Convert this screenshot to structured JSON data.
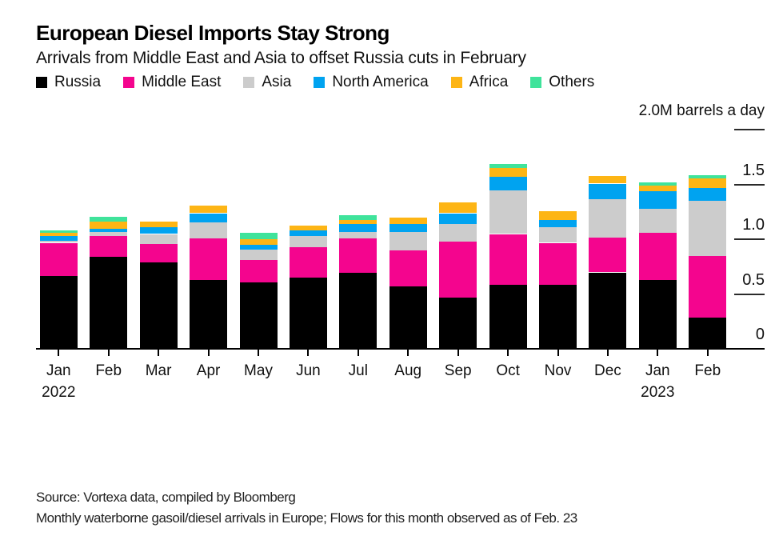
{
  "title": "European Diesel Imports Stay Strong",
  "subtitle": "Arrivals from Middle East and Asia to offset Russia cuts in February",
  "unit_label": "2.0M barrels a day",
  "source_line1": "Source: Vortexa data, compiled by Bloomberg",
  "source_line2": "Monthly waterborne gasoil/diesel arrivals in Europe; Flows for this month observed as of Feb. 23",
  "legend": [
    {
      "label": "Russia",
      "color": "#000000"
    },
    {
      "label": "Middle East",
      "color": "#f4058e"
    },
    {
      "label": "Asia",
      "color": "#cccccc"
    },
    {
      "label": "North America",
      "color": "#00a3f0"
    },
    {
      "label": "Africa",
      "color": "#fdb515"
    },
    {
      "label": "Others",
      "color": "#3fe39b"
    }
  ],
  "y_axis": {
    "labels": [
      {
        "text": "0",
        "value": 0
      },
      {
        "text": "0.5",
        "value": 0.5
      },
      {
        "text": "1.0",
        "value": 1.0
      },
      {
        "text": "1.5",
        "value": 1.5
      }
    ],
    "tick_line_values": [
      0.5,
      1.0,
      1.5,
      2.0
    ]
  },
  "chart_data": {
    "type": "bar",
    "stacked": true,
    "title": "European Diesel Imports Stay Strong",
    "subtitle": "Arrivals from Middle East and Asia to offset Russia cuts in February",
    "ylabel": "M barrels a day",
    "ylim": [
      0,
      2.0
    ],
    "yticks": [
      0,
      0.5,
      1.0,
      1.5,
      2.0
    ],
    "grid": false,
    "legend_position": "top",
    "categories": [
      "Jan",
      "Feb",
      "Mar",
      "Apr",
      "May",
      "Jun",
      "Jul",
      "Aug",
      "Sep",
      "Oct",
      "Nov",
      "Dec",
      "Jan",
      "Feb"
    ],
    "category_year_labels": {
      "0": "2022",
      "12": "2023"
    },
    "series": [
      {
        "name": "Russia",
        "color": "#000000",
        "values": [
          0.66,
          0.83,
          0.78,
          0.62,
          0.6,
          0.64,
          0.69,
          0.56,
          0.46,
          0.58,
          0.58,
          0.69,
          0.62,
          0.28
        ]
      },
      {
        "name": "Middle East",
        "color": "#f4058e",
        "values": [
          0.3,
          0.19,
          0.17,
          0.38,
          0.2,
          0.28,
          0.31,
          0.33,
          0.51,
          0.46,
          0.38,
          0.32,
          0.43,
          0.56
        ]
      },
      {
        "name": "Asia",
        "color": "#cccccc",
        "values": [
          0.02,
          0.04,
          0.09,
          0.15,
          0.1,
          0.1,
          0.06,
          0.17,
          0.16,
          0.4,
          0.14,
          0.35,
          0.22,
          0.5
        ]
      },
      {
        "name": "North America",
        "color": "#00a3f0",
        "values": [
          0.04,
          0.03,
          0.06,
          0.08,
          0.04,
          0.05,
          0.07,
          0.07,
          0.1,
          0.12,
          0.07,
          0.14,
          0.16,
          0.12
        ]
      },
      {
        "name": "Africa",
        "color": "#fdb515",
        "values": [
          0.03,
          0.06,
          0.05,
          0.07,
          0.05,
          0.05,
          0.04,
          0.06,
          0.1,
          0.08,
          0.08,
          0.07,
          0.05,
          0.09
        ]
      },
      {
        "name": "Others",
        "color": "#3fe39b",
        "values": [
          0.02,
          0.05,
          0.0,
          0.0,
          0.06,
          0.0,
          0.04,
          0.0,
          0.0,
          0.04,
          0.0,
          0.0,
          0.03,
          0.03
        ]
      }
    ],
    "totals": [
      1.07,
      1.2,
      1.15,
      1.3,
      1.05,
      1.12,
      1.21,
      1.19,
      1.33,
      1.68,
      1.25,
      1.57,
      1.51,
      1.58
    ]
  }
}
